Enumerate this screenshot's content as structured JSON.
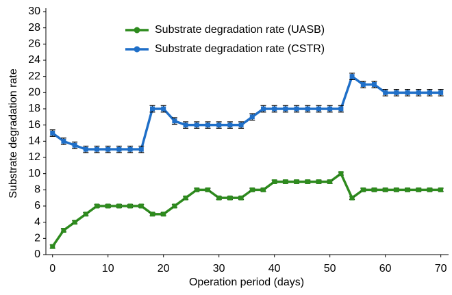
{
  "chart_data": {
    "type": "line",
    "x_label": "Operation period (days)",
    "y_label": "Substrate degradation rate",
    "x": [
      0,
      2,
      4,
      6,
      8,
      10,
      12,
      14,
      16,
      18,
      20,
      22,
      24,
      26,
      28,
      30,
      32,
      34,
      36,
      38,
      40,
      42,
      44,
      46,
      48,
      50,
      52,
      54,
      56,
      58,
      60,
      62,
      64,
      66,
      68,
      70
    ],
    "series": [
      {
        "name": "Substrate degradation rate (UASB)",
        "color": "#2e8b1e",
        "values": [
          1,
          3,
          4,
          5,
          6,
          6,
          6,
          6,
          6,
          5,
          5,
          6,
          7,
          8,
          8,
          7,
          7,
          7,
          8,
          8,
          9,
          9,
          9,
          9,
          9,
          9,
          10,
          7,
          8,
          8,
          8,
          8,
          8,
          8,
          8,
          8
        ],
        "errors": [
          0.2,
          0.2,
          0.2,
          0.2,
          0.2,
          0.2,
          0.2,
          0.2,
          0.2,
          0.2,
          0.2,
          0.2,
          0.2,
          0.2,
          0.2,
          0.2,
          0.2,
          0.2,
          0.2,
          0.2,
          0.2,
          0.2,
          0.2,
          0.2,
          0.2,
          0.2,
          0.2,
          0.2,
          0.2,
          0.2,
          0.2,
          0.2,
          0.2,
          0.2,
          0.2,
          0.2
        ]
      },
      {
        "name": "Substrate degradation rate (CSTR)",
        "color": "#1f6fc8",
        "values": [
          15,
          14,
          13.5,
          13,
          13,
          13,
          13,
          13,
          13,
          18,
          18,
          16.5,
          16,
          16,
          16,
          16,
          16,
          16,
          17,
          18,
          18,
          18,
          18,
          18,
          18,
          18,
          18,
          22,
          21,
          21,
          20,
          20,
          20,
          20,
          20,
          20
        ],
        "errors": [
          0.4,
          0.4,
          0.4,
          0.4,
          0.4,
          0.4,
          0.4,
          0.4,
          0.4,
          0.4,
          0.4,
          0.4,
          0.4,
          0.4,
          0.4,
          0.4,
          0.4,
          0.4,
          0.4,
          0.4,
          0.4,
          0.4,
          0.4,
          0.4,
          0.4,
          0.4,
          0.4,
          0.4,
          0.4,
          0.4,
          0.4,
          0.4,
          0.4,
          0.4,
          0.4,
          0.4
        ]
      }
    ],
    "xlim": [
      -1.2,
      71.4
    ],
    "xticks": [
      0,
      10,
      20,
      30,
      40,
      50,
      60,
      70
    ],
    "ylim": [
      0,
      30
    ],
    "yticks": [
      0,
      2,
      4,
      6,
      8,
      10,
      12,
      14,
      16,
      18,
      20,
      22,
      24,
      26,
      28,
      30
    ],
    "legend": "upper center"
  }
}
